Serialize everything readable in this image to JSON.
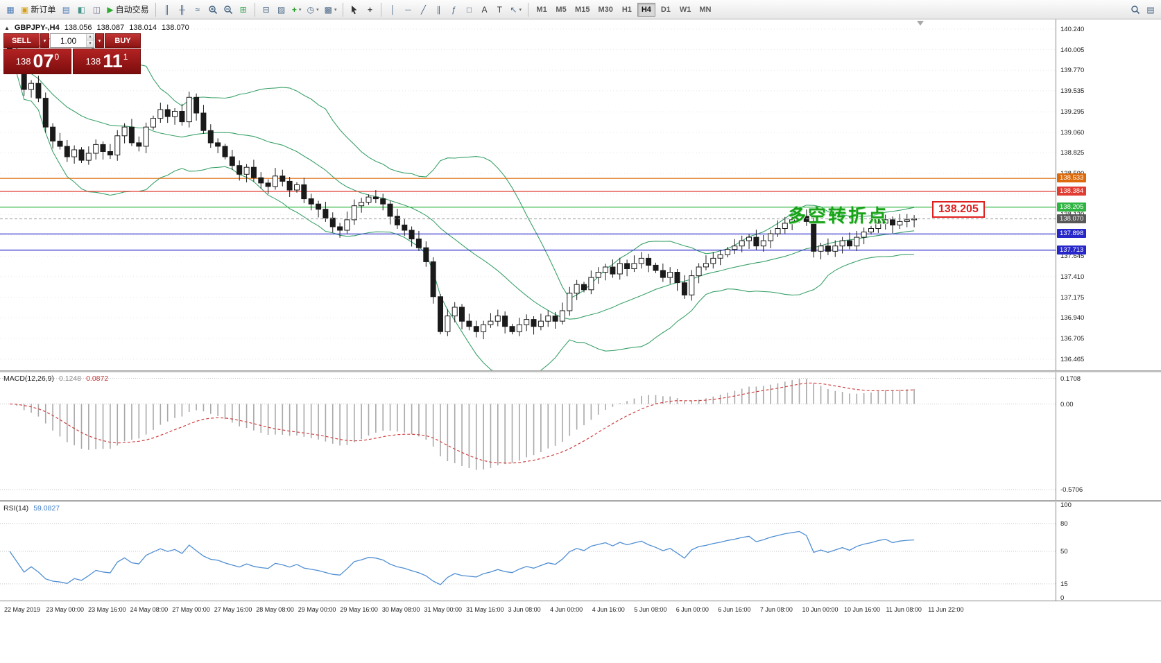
{
  "toolbar": {
    "active_timeframe": "H4",
    "timeframes": [
      "M1",
      "M5",
      "M15",
      "M30",
      "H1",
      "H4",
      "D1",
      "W1",
      "MN"
    ],
    "groups": [
      {
        "items": [
          {
            "name": "new-chart-icon",
            "glyph": "▦",
            "color": "#4a7ab5"
          },
          {
            "name": "new-order-button",
            "glyph": "▣",
            "color": "#d4a017",
            "label": "新订单"
          },
          {
            "name": "charts-profile-icon",
            "glyph": "▤",
            "color": "#4a7ab5"
          },
          {
            "name": "market-watch-icon",
            "glyph": "◧",
            "color": "#46958a"
          },
          {
            "name": "navigator-icon",
            "glyph": "◫",
            "color": "#7a7a9a"
          },
          {
            "name": "auto-trading-button",
            "glyph": "▶",
            "color": "#2eaa2e",
            "label": "自动交易"
          }
        ]
      },
      {
        "items": [
          {
            "name": "bar-chart-icon",
            "glyph": "║",
            "color": "#4a6785"
          },
          {
            "name": "candlestick-chart-icon",
            "glyph": "╫",
            "color": "#4a6785"
          },
          {
            "name": "line-chart-icon",
            "glyph": "≈",
            "color": "#4a6785"
          },
          {
            "name": "zoom-in-icon",
            "svg": "zoom-in"
          },
          {
            "name": "zoom-out-icon",
            "svg": "zoom-out"
          },
          {
            "name": "tile-windows-icon",
            "glyph": "⊞",
            "color": "#2e9e4a"
          }
        ]
      },
      {
        "items": [
          {
            "name": "arrange-windows-icon",
            "glyph": "⊟",
            "color": "#4a6785"
          },
          {
            "name": "cascade-windows-icon",
            "glyph": "▨",
            "color": "#4a6785"
          },
          {
            "name": "indicators-icon",
            "glyph": "+",
            "color": "#1f9e1f",
            "caret": true
          },
          {
            "name": "periods-icon",
            "glyph": "◷",
            "color": "#4a6785",
            "caret": true
          },
          {
            "name": "templates-icon",
            "glyph": "▩",
            "color": "#4a6785",
            "caret": true
          }
        ]
      },
      {
        "items": [
          {
            "name": "cursor-icon",
            "svg": "cursor"
          },
          {
            "name": "crosshair-icon",
            "glyph": "+",
            "color": "#333333"
          }
        ]
      },
      {
        "items": [
          {
            "name": "vertical-line-icon",
            "glyph": "│",
            "color": "#4a6785"
          },
          {
            "name": "horizontal-line-icon",
            "glyph": "─",
            "color": "#4a6785"
          },
          {
            "name": "trendline-icon",
            "glyph": "╱",
            "color": "#4a6785"
          },
          {
            "name": "equidistant-channel-icon",
            "glyph": "∥",
            "color": "#4a6785"
          },
          {
            "name": "fibonacci-icon",
            "glyph": "ƒ",
            "color": "#4a6785"
          },
          {
            "name": "shapes-icon",
            "glyph": "□",
            "color": "#4a6785"
          },
          {
            "name": "text-icon",
            "glyph": "A",
            "color": "#333333"
          },
          {
            "name": "label-icon",
            "glyph": "T",
            "color": "#333333"
          },
          {
            "name": "arrows-icon",
            "glyph": "↖",
            "color": "#4a6785",
            "caret": true
          }
        ]
      }
    ],
    "right_items": [
      {
        "name": "search-icon",
        "svg": "search"
      },
      {
        "name": "workspace-icon",
        "glyph": "▤",
        "color": "#4a6785"
      }
    ]
  },
  "chart": {
    "header": {
      "symbol": "GBPJPY-,H4",
      "open": "138.056",
      "high": "138.087",
      "low": "138.014",
      "close": "138.070"
    },
    "trade_panel": {
      "sell_label": "SELL",
      "buy_label": "BUY",
      "volume": "1.00",
      "sell_big": "138",
      "sell_pips": "07",
      "sell_sup": "0",
      "buy_big": "138",
      "buy_pips": "11",
      "buy_sup": "1"
    },
    "annotation": {
      "text": "多空转折点",
      "color": "#17a317"
    },
    "callout": {
      "text": "138.205"
    },
    "bands_color": "#3aa169",
    "price_axis": {
      "labels": [
        "140.240",
        "140.005",
        "139.770",
        "139.535",
        "139.295",
        "139.060",
        "138.825",
        "138.590",
        "138.120",
        "137.645",
        "137.410",
        "137.175",
        "136.940",
        "136.705",
        "136.465"
      ],
      "extra_gridlines": [
        138.355,
        137.885
      ]
    },
    "lines": [
      {
        "price": 138.533,
        "color": "#dd6a0c"
      },
      {
        "price": 138.384,
        "color": "#e03c31"
      },
      {
        "price": 138.205,
        "color": "#2eb440"
      },
      {
        "price": 137.898,
        "color": "#2626c9"
      },
      {
        "price": 137.713,
        "color": "#2626c9"
      }
    ],
    "current_price": {
      "price": 138.07,
      "label": "138.070",
      "box_color": "#585858"
    }
  },
  "indicator_labels": {
    "macd_name": "MACD(12,26,9)",
    "macd_v1": "0.1248",
    "macd_v2": "0.0872",
    "rsi_name": "RSI(14)",
    "rsi_v": "59.0827"
  },
  "chart_data": {
    "type": "candlestick",
    "symbol": "GBPJPY-",
    "timeframe": "H4",
    "title": "GBPJPY-,H4",
    "last_bar_ohlc": {
      "open": 138.056,
      "high": 138.087,
      "low": 138.014,
      "close": 138.07
    },
    "ylim": [
      136.338,
      140.351
    ],
    "first_open": 140.05,
    "closes": [
      139.95,
      139.8,
      139.55,
      139.62,
      139.45,
      139.12,
      138.96,
      138.9,
      138.78,
      138.86,
      138.74,
      138.82,
      138.92,
      138.84,
      138.8,
      139.02,
      139.12,
      138.94,
      138.9,
      139.12,
      139.22,
      139.32,
      139.24,
      139.3,
      139.18,
      139.46,
      139.28,
      139.08,
      138.94,
      138.9,
      138.78,
      138.68,
      138.58,
      138.66,
      138.54,
      138.48,
      138.44,
      138.56,
      138.5,
      138.4,
      138.46,
      138.3,
      138.24,
      138.18,
      138.08,
      137.98,
      137.94,
      138.06,
      138.22,
      138.26,
      138.32,
      138.3,
      138.24,
      138.1,
      138.0,
      137.94,
      137.84,
      137.74,
      137.58,
      137.18,
      136.78,
      136.96,
      137.06,
      136.9,
      136.84,
      136.78,
      136.86,
      136.9,
      136.96,
      136.84,
      136.78,
      136.86,
      136.92,
      136.84,
      136.9,
      136.96,
      136.9,
      137.02,
      137.22,
      137.32,
      137.26,
      137.4,
      137.46,
      137.52,
      137.44,
      137.56,
      137.5,
      137.56,
      137.62,
      137.54,
      137.48,
      137.4,
      137.46,
      137.34,
      137.2,
      137.42,
      137.52,
      137.56,
      137.62,
      137.66,
      137.72,
      137.76,
      137.82,
      137.86,
      137.76,
      137.82,
      137.9,
      137.96,
      138.02,
      138.06,
      138.1,
      138.04,
      137.7,
      137.76,
      137.7,
      137.76,
      137.82,
      137.76,
      137.86,
      137.92,
      137.96,
      138.02,
      138.06,
      138.0,
      138.04,
      138.06,
      138.07
    ],
    "x_labels": [
      "22 May 2019",
      "23 May 00:00",
      "23 May 16:00",
      "24 May 08:00",
      "27 May 00:00",
      "27 May 16:00",
      "28 May 08:00",
      "29 May 00:00",
      "29 May 16:00",
      "30 May 08:00",
      "31 May 00:00",
      "31 May 16:00",
      "3 Jun 08:00",
      "4 Jun 00:00",
      "4 Jun 16:00",
      "5 Jun 08:00",
      "6 Jun 00:00",
      "6 Jun 16:00",
      "7 Jun 08:00",
      "10 Jun 00:00",
      "10 Jun 16:00",
      "11 Jun 08:00",
      "11 Jun 22:00"
    ],
    "overlays": {
      "bollinger_bands": {
        "period": 20,
        "deviation": 2,
        "color": "#3aa169"
      }
    },
    "horizontal_lines": [
      138.533,
      138.384,
      138.205,
      137.898,
      137.713
    ],
    "bid_line": 138.07,
    "indicators": [
      {
        "name": "MACD",
        "params": "12,26,9",
        "shown_values": [
          0.1248,
          0.0872
        ],
        "axis": [
          {
            "text": "0.1708",
            "value": 0.1708
          },
          {
            "text": "0.00",
            "value": 0
          },
          {
            "text": "-0.5706",
            "value": -0.5706
          }
        ]
      },
      {
        "name": "RSI",
        "params": "14",
        "shown_value": 59.0827,
        "axis": [
          {
            "text": "100",
            "value": 100
          },
          {
            "text": "80",
            "value": 80
          },
          {
            "text": "50",
            "value": 50
          },
          {
            "text": "15",
            "value": 15
          },
          {
            "text": "0",
            "value": 0
          }
        ]
      }
    ]
  }
}
